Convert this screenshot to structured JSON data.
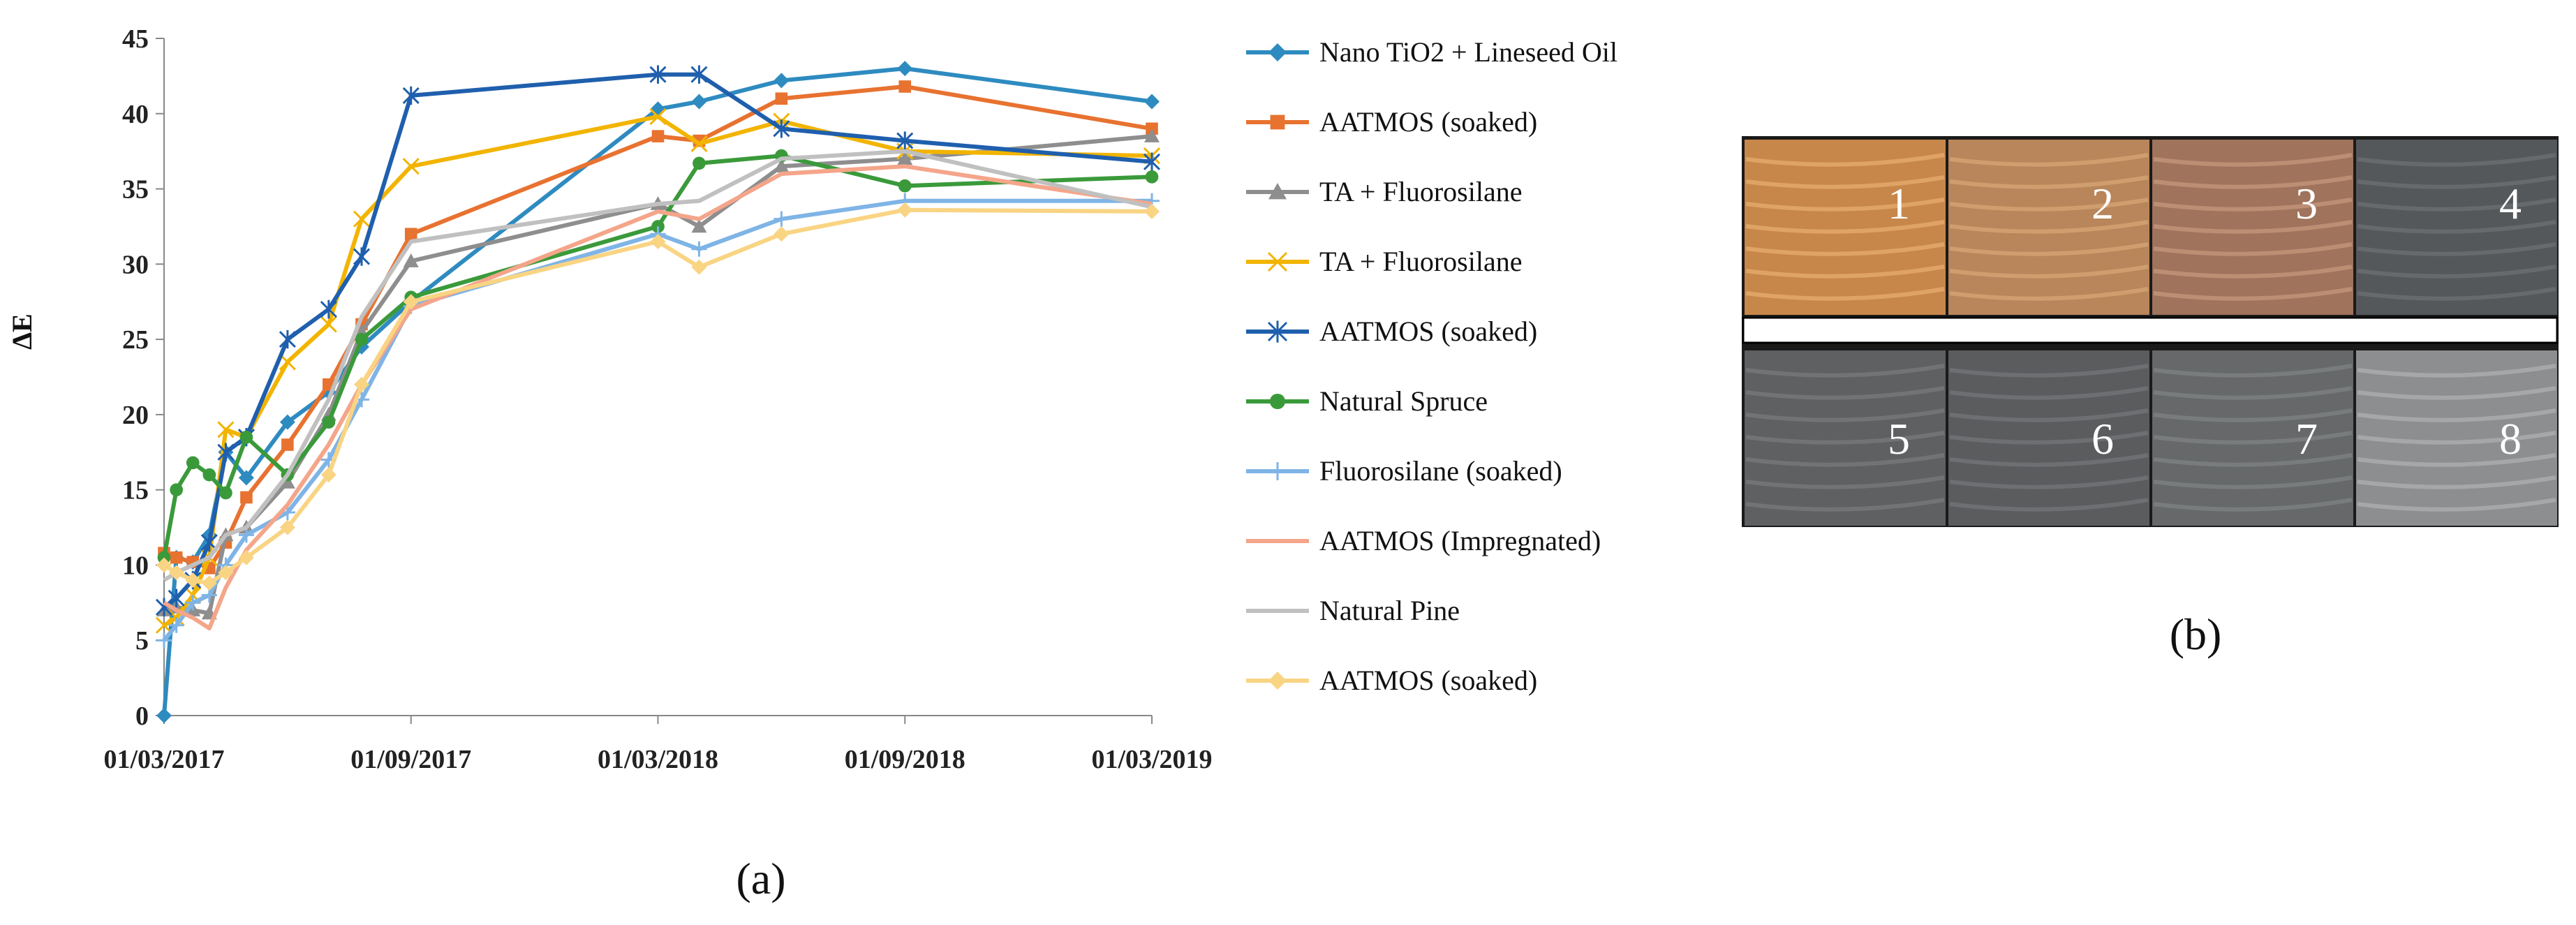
{
  "chart_data": {
    "type": "line",
    "title": "",
    "xlabel": "",
    "ylabel": "ΔE",
    "ylim": [
      0,
      45
    ],
    "yticks": [
      "0",
      "5",
      "10",
      "15",
      "20",
      "25",
      "30",
      "35",
      "40",
      "45"
    ],
    "xticks": [
      "01/03/2017",
      "01/09/2017",
      "01/03/2018",
      "01/09/2018",
      "01/03/2019"
    ],
    "xtick_months": [
      0,
      6,
      12,
      18,
      24
    ],
    "x_unit": "months since 01/03/2017",
    "legend_position": "right",
    "x": [
      0,
      0.3,
      0.7,
      1.1,
      1.5,
      2.0,
      3.0,
      4.0,
      4.8,
      6.0,
      12.0,
      13.0,
      15.0,
      18.0,
      24.0
    ],
    "series": [
      {
        "name": "Nano TiO2 + Lineseed Oil",
        "color": "#2E8BC0",
        "marker": "diamond",
        "values": [
          0,
          10.5,
          10.2,
          12.0,
          17.5,
          15.8,
          19.5,
          21.5,
          24.5,
          27.5,
          40.3,
          40.8,
          42.2,
          43.0,
          40.8
        ]
      },
      {
        "name": "AATMOS (soaked)",
        "color": "#E87230",
        "marker": "square",
        "values": [
          10.8,
          10.5,
          10.2,
          9.8,
          11.5,
          14.5,
          18.0,
          22.0,
          26.0,
          32.0,
          38.5,
          38.2,
          41.0,
          41.8,
          39.0
        ]
      },
      {
        "name": "TA + Fluorosilane",
        "color": "#8E8E8E",
        "marker": "triangle",
        "values": [
          7.0,
          7.2,
          7.0,
          6.8,
          12.0,
          12.5,
          15.5,
          20.0,
          25.5,
          30.2,
          34.0,
          32.5,
          36.5,
          37.0,
          38.5
        ]
      },
      {
        "name": "TA + Fluorosilane",
        "color": "#F2B400",
        "marker": "x",
        "values": [
          6.0,
          6.5,
          8.0,
          10.5,
          19.0,
          18.5,
          23.5,
          26.0,
          33.0,
          36.5,
          39.8,
          38.0,
          39.5,
          37.5,
          37.2
        ]
      },
      {
        "name": "AATMOS (soaked)",
        "color": "#1F5FAD",
        "marker": "star",
        "values": [
          7.2,
          7.8,
          9.0,
          11.5,
          17.5,
          18.5,
          25.0,
          27.0,
          30.5,
          41.2,
          42.6,
          42.6,
          39.0,
          38.2,
          36.8
        ]
      },
      {
        "name": "Natural Spruce",
        "color": "#3A9A3A",
        "marker": "circle",
        "values": [
          10.5,
          15.0,
          16.8,
          16.0,
          14.8,
          18.5,
          16.0,
          19.5,
          25.0,
          27.8,
          32.5,
          36.7,
          37.2,
          35.2,
          35.8
        ]
      },
      {
        "name": "Fluorosilane (soaked)",
        "color": "#7FB4E6",
        "marker": "plus",
        "values": [
          5.0,
          6.0,
          7.5,
          8.0,
          10.0,
          12.0,
          13.5,
          17.0,
          21.0,
          27.2,
          32.0,
          31.0,
          33.0,
          34.2,
          34.2
        ]
      },
      {
        "name": "AATMOS (Impregnated)",
        "color": "#F4A58A",
        "marker": "none",
        "values": [
          7.5,
          7.0,
          6.5,
          5.8,
          8.5,
          11.0,
          14.0,
          18.0,
          22.0,
          27.0,
          33.5,
          33.0,
          36.0,
          36.5,
          34.0
        ]
      },
      {
        "name": "Natural Pine",
        "color": "#C0C0C0",
        "marker": "none",
        "values": [
          9.0,
          9.5,
          10.0,
          10.5,
          12.0,
          12.5,
          16.0,
          21.0,
          26.5,
          31.5,
          34.0,
          34.2,
          37.0,
          37.5,
          33.8
        ]
      },
      {
        "name": "AATMOS (soaked)",
        "color": "#F9D483",
        "marker": "diamond",
        "values": [
          10.0,
          9.5,
          9.0,
          8.8,
          9.5,
          10.5,
          12.5,
          16.0,
          22.0,
          27.5,
          31.5,
          29.8,
          32.0,
          33.6,
          33.5
        ]
      }
    ]
  },
  "panel_a_label": "(a)",
  "panel_b_label": "(b)",
  "panel_b": {
    "samples": [
      {
        "number": "1",
        "tone": "#C8874A",
        "grain": "#E8B070"
      },
      {
        "number": "2",
        "tone": "#B9855A",
        "grain": "#D9A878"
      },
      {
        "number": "3",
        "tone": "#A0735C",
        "grain": "#C89B80"
      },
      {
        "number": "4",
        "tone": "#55585A",
        "grain": "#6E7275"
      },
      {
        "number": "5",
        "tone": "#5E6062",
        "grain": "#7A7C7E"
      },
      {
        "number": "6",
        "tone": "#5A5C5E",
        "grain": "#76787A"
      },
      {
        "number": "7",
        "tone": "#66686A",
        "grain": "#828486"
      },
      {
        "number": "8",
        "tone": "#8C8E90",
        "grain": "#B0B2B4"
      }
    ]
  }
}
